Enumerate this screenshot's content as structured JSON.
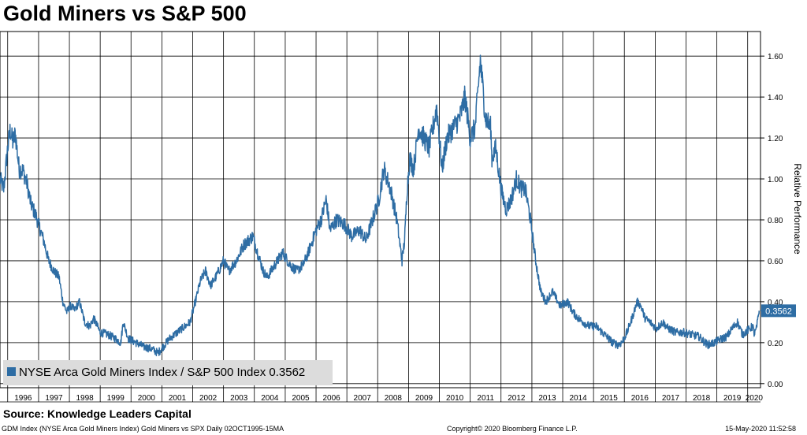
{
  "title": "Gold Miners vs S&P 500",
  "source": "Source: Knowledge Leaders Capital",
  "footer": {
    "left": "GDM Index (NYSE Arca Gold Miners Index) Gold Miners vs SPX  Daily 02OCT1995-15MA",
    "center": "Copyright© 2020 Bloomberg Finance L.P.",
    "right": "15-May-2020 11:52:58"
  },
  "colors": {
    "line": "#2e6da4",
    "grid": "#000000",
    "label_bg": "#2e6da4"
  },
  "chart_data": {
    "type": "line",
    "ylabel": "Relative Performance",
    "xlabel": "",
    "ylim": [
      -0.02,
      1.72
    ],
    "y_ticks": [
      "0.00",
      "0.20",
      "0.40",
      "0.60",
      "0.80",
      "1.00",
      "1.20",
      "1.40",
      "1.60"
    ],
    "x_ticks": [
      "1996",
      "1997",
      "1998",
      "1999",
      "2000",
      "2001",
      "2002",
      "2003",
      "2004",
      "2005",
      "2006",
      "2007",
      "2008",
      "2009",
      "2010",
      "2011",
      "2012",
      "2013",
      "2014",
      "2015",
      "2016",
      "2017",
      "2018",
      "2019",
      "2020"
    ],
    "legend": {
      "position": "bottom-left",
      "label": "NYSE Arca Gold Miners Index / S&P 500 Index 0.3562"
    },
    "last_value_label": "0.3562",
    "series": [
      {
        "name": "NYSE Arca Gold Miners Index / S&P 500 Index",
        "x": [
          "1995-10-02",
          "1995-11-15",
          "1996-01-01",
          "1996-02-01",
          "1996-03-01",
          "1996-04-01",
          "1996-05-15",
          "1996-07-01",
          "1996-08-15",
          "1996-10-01",
          "1996-12-01",
          "1997-01-15",
          "1997-03-01",
          "1997-05-01",
          "1997-07-01",
          "1997-09-01",
          "1997-10-15",
          "1997-12-01",
          "1998-01-15",
          "1998-03-01",
          "1998-05-01",
          "1998-07-01",
          "1998-09-01",
          "1998-10-15",
          "1999-01-01",
          "1999-04-01",
          "1999-07-01",
          "1999-09-01",
          "1999-10-01",
          "1999-12-01",
          "2000-03-01",
          "2000-06-01",
          "2000-09-01",
          "2000-11-15",
          "2001-01-15",
          "2001-04-01",
          "2001-07-01",
          "2001-10-01",
          "2001-12-01",
          "2002-02-01",
          "2002-04-01",
          "2002-06-01",
          "2002-08-01",
          "2002-10-01",
          "2003-01-01",
          "2003-03-01",
          "2003-06-01",
          "2003-09-01",
          "2003-12-15",
          "2004-02-01",
          "2004-04-15",
          "2004-06-01",
          "2004-09-01",
          "2004-12-01",
          "2005-03-01",
          "2005-05-15",
          "2005-08-01",
          "2005-10-01",
          "2006-01-01",
          "2006-03-01",
          "2006-05-01",
          "2006-06-15",
          "2006-09-01",
          "2006-12-01",
          "2007-03-01",
          "2007-06-01",
          "2007-08-15",
          "2007-11-01",
          "2008-01-15",
          "2008-03-15",
          "2008-06-01",
          "2008-08-15",
          "2008-10-15",
          "2008-11-15",
          "2008-12-15",
          "2009-01-15",
          "2009-03-01",
          "2009-05-01",
          "2009-07-01",
          "2009-09-01",
          "2009-12-01",
          "2010-02-01",
          "2010-04-01",
          "2010-06-15",
          "2010-09-01",
          "2010-11-01",
          "2011-01-01",
          "2011-03-01",
          "2011-05-01",
          "2011-07-01",
          "2011-09-01",
          "2011-09-15",
          "2011-11-01",
          "2012-01-01",
          "2012-03-01",
          "2012-05-01",
          "2012-07-01",
          "2012-09-01",
          "2012-10-15",
          "2012-12-15",
          "2013-02-15",
          "2013-04-15",
          "2013-06-15",
          "2013-09-01",
          "2013-12-01",
          "2014-03-01",
          "2014-05-01",
          "2014-07-01",
          "2014-09-01",
          "2014-11-15",
          "2015-02-01",
          "2015-04-15",
          "2015-07-01",
          "2015-08-15",
          "2015-10-15",
          "2015-12-01",
          "2016-02-01",
          "2016-04-01",
          "2016-06-01",
          "2016-07-15",
          "2016-09-01",
          "2016-11-01",
          "2017-01-15",
          "2017-04-01",
          "2017-06-01",
          "2017-09-01",
          "2017-12-01",
          "2018-03-01",
          "2018-06-01",
          "2018-08-15",
          "2018-09-15",
          "2018-12-01",
          "2019-03-01",
          "2019-05-01",
          "2019-07-01",
          "2019-09-01",
          "2019-11-01",
          "2020-01-01",
          "2020-03-01",
          "2020-03-20",
          "2020-04-15",
          "2020-05-15"
        ],
        "values": [
          1.0,
          0.95,
          1.15,
          1.24,
          1.18,
          1.22,
          1.05,
          1.04,
          0.98,
          0.88,
          0.82,
          0.76,
          0.7,
          0.6,
          0.55,
          0.52,
          0.4,
          0.35,
          0.38,
          0.36,
          0.4,
          0.3,
          0.28,
          0.32,
          0.25,
          0.24,
          0.22,
          0.2,
          0.3,
          0.22,
          0.2,
          0.18,
          0.17,
          0.15,
          0.18,
          0.22,
          0.25,
          0.28,
          0.3,
          0.4,
          0.5,
          0.55,
          0.48,
          0.52,
          0.6,
          0.55,
          0.6,
          0.68,
          0.72,
          0.65,
          0.55,
          0.52,
          0.58,
          0.64,
          0.58,
          0.55,
          0.58,
          0.64,
          0.75,
          0.8,
          0.9,
          0.75,
          0.8,
          0.78,
          0.72,
          0.75,
          0.7,
          0.8,
          0.9,
          1.05,
          0.95,
          0.8,
          0.6,
          0.7,
          0.95,
          1.1,
          1.05,
          1.25,
          1.2,
          1.15,
          1.35,
          1.05,
          1.2,
          1.25,
          1.3,
          1.4,
          1.2,
          1.25,
          1.58,
          1.3,
          1.25,
          1.1,
          1.15,
          0.95,
          0.85,
          0.9,
          1.0,
          0.95,
          0.95,
          0.8,
          0.6,
          0.45,
          0.4,
          0.45,
          0.38,
          0.4,
          0.35,
          0.32,
          0.3,
          0.28,
          0.28,
          0.25,
          0.22,
          0.2,
          0.19,
          0.2,
          0.25,
          0.32,
          0.4,
          0.38,
          0.32,
          0.3,
          0.27,
          0.3,
          0.27,
          0.25,
          0.25,
          0.24,
          0.23,
          0.2,
          0.19,
          0.2,
          0.22,
          0.23,
          0.27,
          0.3,
          0.24,
          0.26,
          0.28,
          0.24,
          0.27,
          0.356
        ]
      }
    ]
  }
}
